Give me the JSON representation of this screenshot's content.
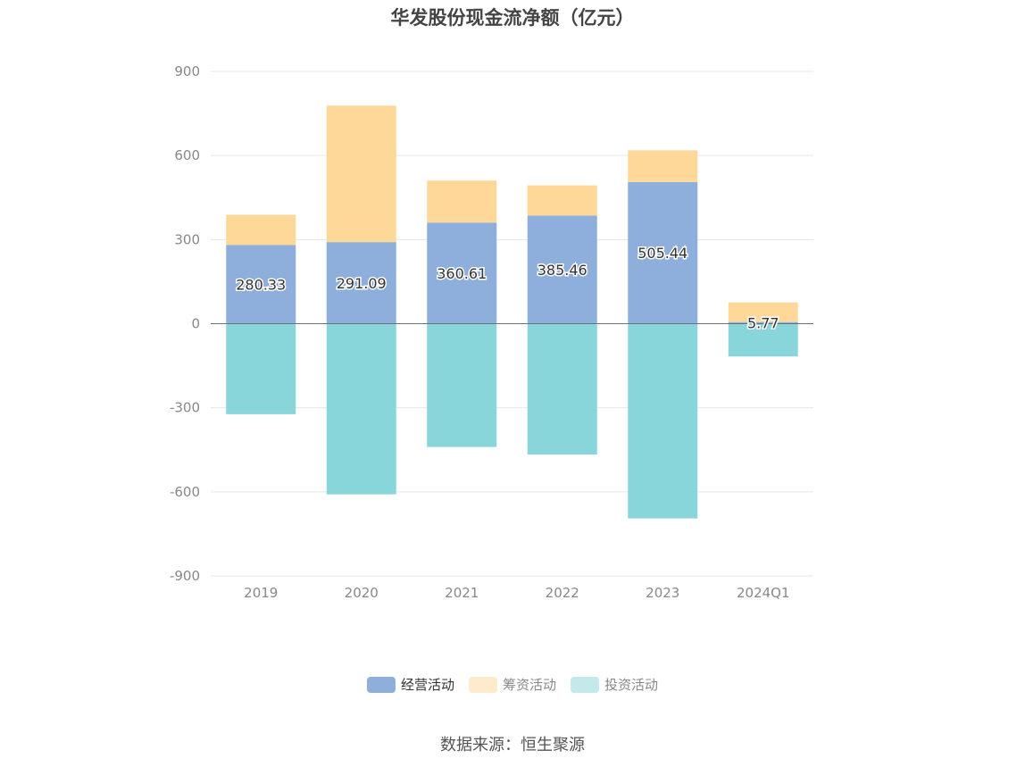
{
  "title": "华发股份现金流净额（亿元）",
  "source_label": "数据来源：恒生聚源",
  "chart_data": {
    "type": "bar",
    "stacked": true,
    "categories": [
      "2019",
      "2020",
      "2021",
      "2022",
      "2023",
      "2024Q1"
    ],
    "series": [
      {
        "name": "经营活动",
        "color": "#8eaedb",
        "values": [
          280.33,
          291.09,
          360.61,
          385.46,
          505.44,
          5.77
        ],
        "labels": [
          "280.33",
          "291.09",
          "360.61",
          "385.46",
          "505.44",
          "5.77"
        ]
      },
      {
        "name": "筹资活动",
        "color": "#fed899",
        "values": [
          108,
          487,
          150,
          108,
          113,
          70
        ]
      },
      {
        "name": "投资活动",
        "color": "#88d6da",
        "values": [
          -323,
          -609,
          -440,
          -467,
          -695,
          -117
        ]
      }
    ],
    "yticks": [
      900,
      600,
      300,
      0,
      -300,
      -600,
      -900
    ],
    "ylim": [
      -900,
      900
    ],
    "grid": true,
    "legend_position": "bottom",
    "legend_colors": [
      "#8eaedb",
      "#feebcb",
      "#c3e9eb"
    ]
  }
}
